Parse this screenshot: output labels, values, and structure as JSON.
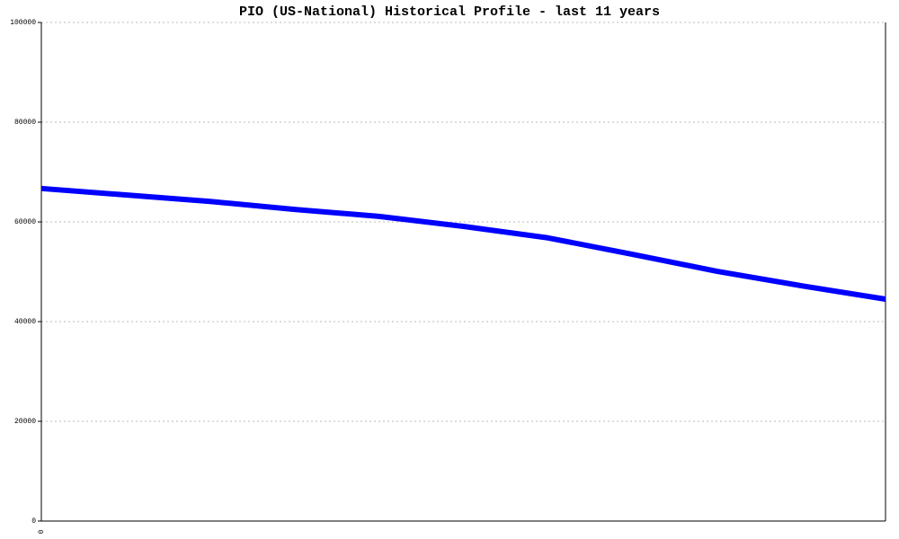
{
  "chart_data": {
    "type": "line",
    "title": "PIO (US-National) Historical Profile - last 11 years",
    "categories": [
      "0",
      null,
      null,
      null,
      null,
      null,
      null,
      null,
      null,
      null,
      null
    ],
    "series": [
      {
        "name": "PIO",
        "color": "#0000ff",
        "values": [
          66700,
          65400,
          64100,
          62500,
          61100,
          59100,
          56800,
          53500,
          50100,
          47200,
          44500
        ]
      }
    ],
    "ylim": [
      0,
      100000
    ],
    "yticks": [
      0,
      20000,
      40000,
      60000,
      80000,
      100000
    ],
    "grid": true
  }
}
